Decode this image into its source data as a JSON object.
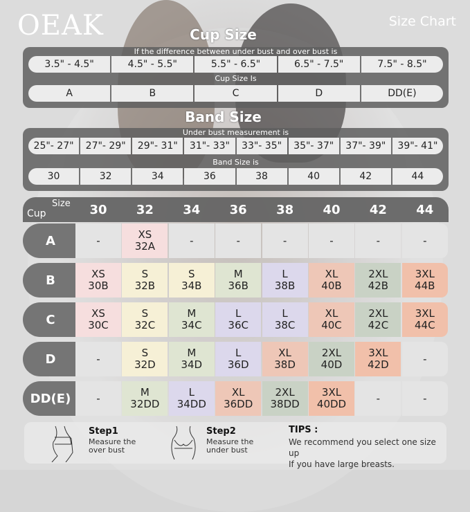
{
  "brand": "OEAK",
  "header_title": "Size Chart",
  "cup_section": {
    "title": "Cup Size",
    "difference_label": "If the  difference between under bust and over bust is",
    "differences": [
      "3.5\" - 4.5\"",
      "4.5\" - 5.5\"",
      "5.5\" - 6.5\"",
      "6.5\" - 7.5\"",
      "7.5\" - 8.5\""
    ],
    "cup_label": "Cup Size Is",
    "cups": [
      "A",
      "B",
      "C",
      "D",
      "DD(E)"
    ]
  },
  "band_section": {
    "title": "Band Size",
    "measure_label": "Under bust measurement is",
    "measurements": [
      "25\"- 27\"",
      "27\"- 29\"",
      "29\"- 31\"",
      "31\"- 33\"",
      "33\"- 35\"",
      "35\"- 37\"",
      "37\"- 39\"",
      "39\"- 41\""
    ],
    "band_label": "Band Size is",
    "bands": [
      "30",
      "32",
      "34",
      "36",
      "38",
      "40",
      "42",
      "44"
    ]
  },
  "grid": {
    "corner_size": "Size",
    "corner_cup": "Cup",
    "columns": [
      "30",
      "32",
      "34",
      "36",
      "38",
      "40",
      "42",
      "44"
    ],
    "rows": [
      {
        "cup": "A",
        "cells": [
          [
            "-"
          ],
          [
            "XS",
            "32A"
          ],
          [
            "-"
          ],
          [
            "-"
          ],
          [
            "-"
          ],
          [
            "-"
          ],
          [
            "-"
          ],
          [
            "-"
          ]
        ]
      },
      {
        "cup": "B",
        "cells": [
          [
            "XS",
            "30B"
          ],
          [
            "S",
            "32B"
          ],
          [
            "S",
            "34B"
          ],
          [
            "M",
            "36B"
          ],
          [
            "L",
            "38B"
          ],
          [
            "XL",
            "40B"
          ],
          [
            "2XL",
            "42B"
          ],
          [
            "3XL",
            "44B"
          ]
        ]
      },
      {
        "cup": "C",
        "cells": [
          [
            "XS",
            "30C"
          ],
          [
            "S",
            "32C"
          ],
          [
            "M",
            "34C"
          ],
          [
            "L",
            "36C"
          ],
          [
            "L",
            "38C"
          ],
          [
            "XL",
            "40C"
          ],
          [
            "2XL",
            "42C"
          ],
          [
            "3XL",
            "44C"
          ]
        ]
      },
      {
        "cup": "D",
        "cells": [
          [
            "-"
          ],
          [
            "S",
            "32D"
          ],
          [
            "M",
            "34D"
          ],
          [
            "L",
            "36D"
          ],
          [
            "XL",
            "38D"
          ],
          [
            "2XL",
            "40D"
          ],
          [
            "3XL",
            "42D"
          ],
          [
            "-"
          ]
        ]
      },
      {
        "cup": "DD(E)",
        "cells": [
          [
            "-"
          ],
          [
            "M",
            "32DD"
          ],
          [
            "L",
            "34DD"
          ],
          [
            "XL",
            "36DD"
          ],
          [
            "2XL",
            "38DD"
          ],
          [
            "3XL",
            "40DD"
          ],
          [
            "-"
          ],
          [
            "-"
          ]
        ]
      }
    ],
    "size_colors": {
      "-": "#e4e4e4",
      "XS": "#f6dede",
      "S": "#f6f0d6",
      "M": "#dfe5d2",
      "L": "#dcd8ec",
      "XL": "#eec7b7",
      "2XL": "#c9d2c5",
      "3XL": "#f1c0aa"
    }
  },
  "steps": [
    {
      "title": "Step1",
      "text1": "Measure the",
      "text2": "over bust"
    },
    {
      "title": "Step2",
      "text1": "Measure the",
      "text2": "under bust"
    }
  ],
  "tips": {
    "title": "TIPS :",
    "line1": "We recommend you select one size up",
    "line2": "If you have large breasts."
  }
}
